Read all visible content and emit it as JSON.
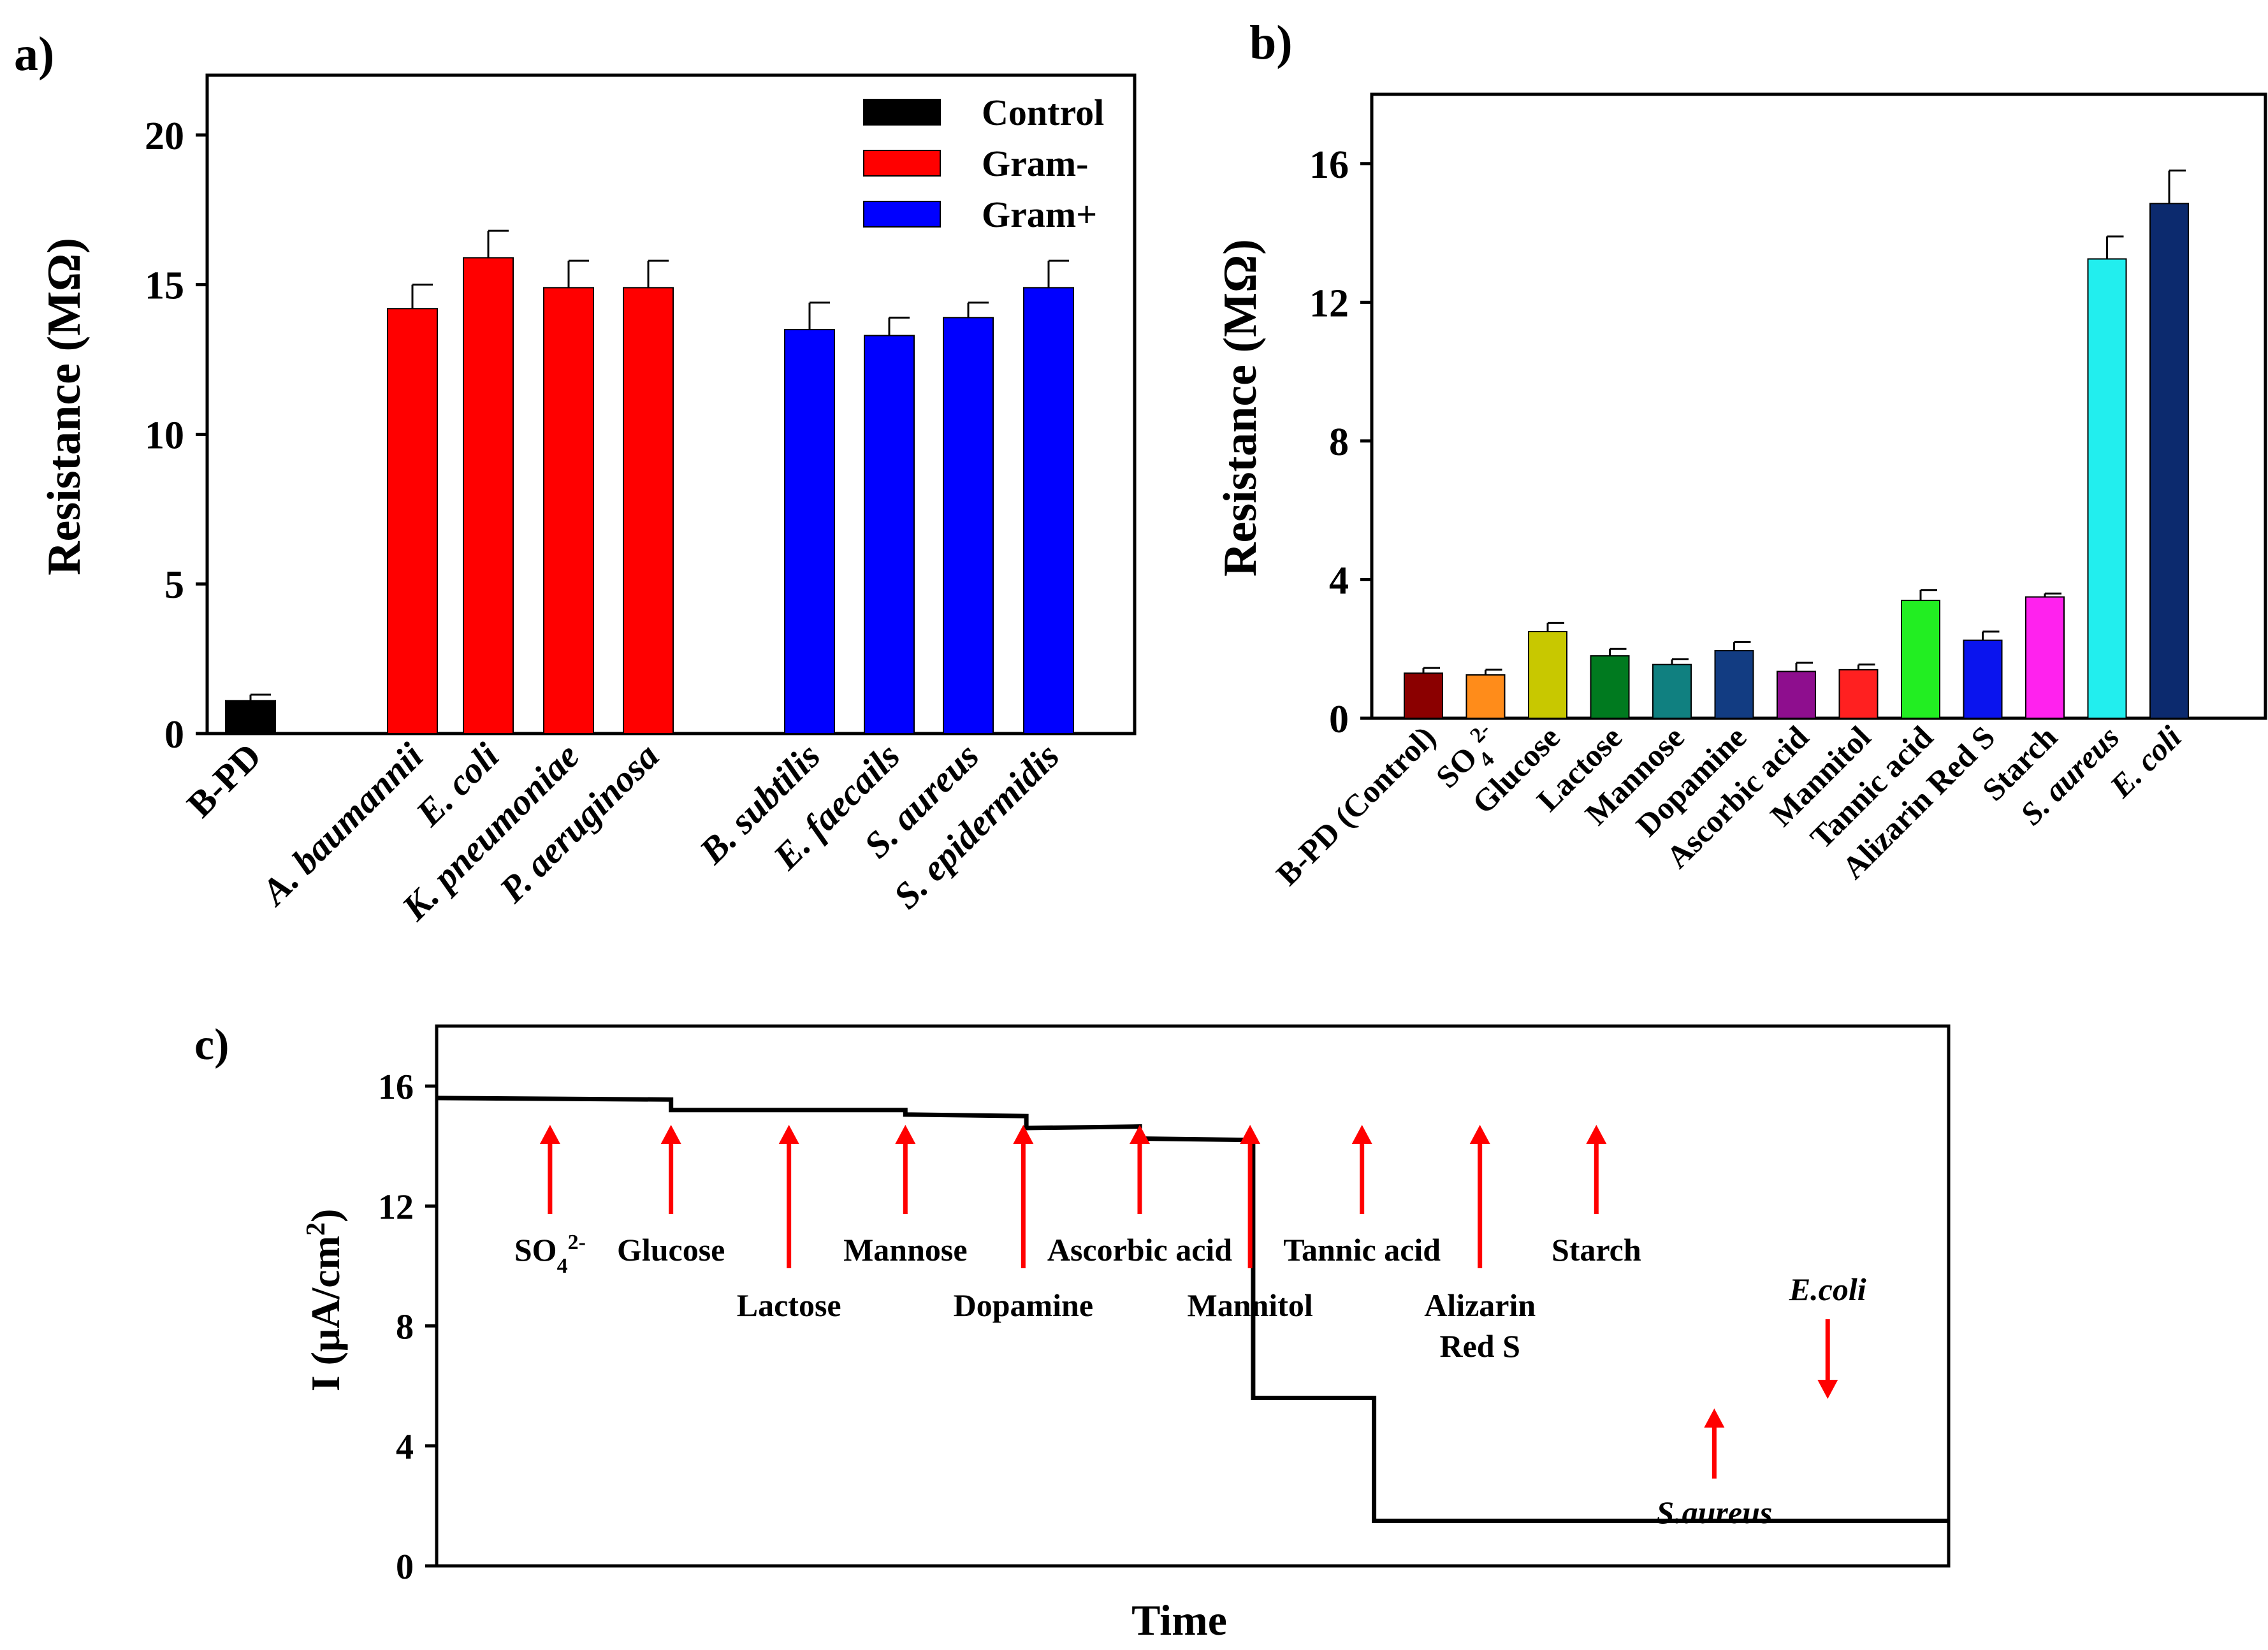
{
  "chart_data": [
    {
      "panel": "a)",
      "type": "bar",
      "ylabel": "Resistance (MΩ)",
      "ylim": [
        0,
        22
      ],
      "yticks": [
        "0",
        "5",
        "10",
        "15",
        "20"
      ],
      "grid": false,
      "legend": {
        "placement": "top-right",
        "entries": [
          {
            "label": "Control",
            "color": "#000000"
          },
          {
            "label": "Gram-",
            "color": "#ff0000"
          },
          {
            "label": "Gram+",
            "color": "#0000ff"
          }
        ]
      },
      "categories": [
        "B-PD",
        "A. baumannii",
        "E. coli",
        "K. pneumoniae",
        "P. aeruginosa",
        "B. subtilis",
        "E. faecails",
        "S. aureus",
        "S. epidermidis"
      ],
      "italic_categories": [
        false,
        true,
        true,
        true,
        true,
        true,
        true,
        true,
        true
      ],
      "groups": [
        "Control",
        "Gram-",
        "Gram-",
        "Gram-",
        "Gram-",
        "Gram+",
        "Gram+",
        "Gram+",
        "Gram+"
      ],
      "values": [
        1.1,
        14.2,
        15.9,
        14.9,
        14.9,
        13.5,
        13.3,
        13.9,
        14.9
      ],
      "errors": [
        0.2,
        0.8,
        0.9,
        0.9,
        0.9,
        0.9,
        0.6,
        0.5,
        0.9
      ]
    },
    {
      "panel": "b)",
      "type": "bar",
      "ylabel": "Resistance (MΩ)",
      "ylim": [
        0,
        18
      ],
      "yticks": [
        "0",
        "4",
        "8",
        "12",
        "16"
      ],
      "grid": false,
      "categories": [
        "B-PD (Control)",
        "SO4",
        "Glucose",
        "Lactose",
        "Mannose",
        "Dopamine",
        "Ascorbic acid",
        "Mannitol",
        "Tannic acid",
        "Alizarin Red S",
        "Starch",
        "S. aureus",
        "E. coli"
      ],
      "so4_superscript": "2-",
      "so4_subscript": "4",
      "italic_categories": [
        false,
        false,
        false,
        false,
        false,
        false,
        false,
        false,
        false,
        false,
        false,
        true,
        true
      ],
      "values": [
        1.3,
        1.25,
        2.5,
        1.8,
        1.55,
        1.95,
        1.35,
        1.4,
        3.4,
        2.25,
        3.5,
        13.25,
        14.85
      ],
      "errors": [
        0.15,
        0.15,
        0.25,
        0.2,
        0.15,
        0.25,
        0.25,
        0.15,
        0.3,
        0.25,
        0.1,
        0.65,
        0.95
      ],
      "colors": [
        "#8b0000",
        "#ff8c1a",
        "#c8c800",
        "#007a1f",
        "#108080",
        "#123c82",
        "#8e0e8e",
        "#ff2020",
        "#22ee22",
        "#0a14ee",
        "#ff22ee",
        "#22eeee",
        "#0c2a6e"
      ]
    },
    {
      "panel": "c)",
      "type": "line",
      "xlabel": "Time",
      "ylabel": "I (μA/cm",
      "ylabel_sup": "2",
      "ylabel_close": ")",
      "ylim": [
        0,
        18
      ],
      "yticks": [
        "0",
        "4",
        "8",
        "12",
        "16"
      ],
      "grid": false,
      "series": [
        {
          "name": "current",
          "color": "#000000",
          "x": [
            0,
            0.155,
            0.155,
            0.31,
            0.31,
            0.39,
            0.39,
            0.465,
            0.465,
            0.54,
            0.54,
            0.62,
            0.62,
            0.685,
            0.685,
            0.77,
            0.77,
            0.84,
            0.84,
            0.92,
            0.92,
            1.0
          ],
          "y": [
            15.6,
            15.55,
            15.2,
            15.2,
            15.05,
            15.0,
            14.6,
            14.65,
            14.25,
            14.2,
            5.6,
            5.6,
            1.5,
            1.5,
            1.5,
            1.5,
            1.5,
            1.5,
            1.5,
            1.5,
            1.5,
            1.5
          ]
        }
      ],
      "annotations": [
        {
          "label": "SO4",
          "sup": "2-",
          "sub": "4",
          "x": 0.075,
          "direction": "up",
          "italic": false
        },
        {
          "label": "Glucose",
          "x": 0.155,
          "direction": "up",
          "italic": false
        },
        {
          "label": "Lactose",
          "x": 0.233,
          "direction": "up",
          "italic": false
        },
        {
          "label": "Mannose",
          "x": 0.31,
          "direction": "up",
          "italic": false
        },
        {
          "label": "Dopamine",
          "x": 0.388,
          "direction": "up",
          "italic": false
        },
        {
          "label": "Ascorbic acid",
          "x": 0.465,
          "direction": "up",
          "italic": false
        },
        {
          "label": "Mannitol",
          "x": 0.538,
          "direction": "up",
          "italic": false
        },
        {
          "label": "Tannic acid",
          "x": 0.612,
          "direction": "up",
          "italic": false
        },
        {
          "label": "Alizarin Red S",
          "lines": [
            "Alizarin",
            "Red S"
          ],
          "x": 0.69,
          "direction": "up",
          "italic": false
        },
        {
          "label": "Starch",
          "x": 0.767,
          "direction": "up",
          "italic": false
        },
        {
          "label": "S.aureus",
          "x": 0.845,
          "direction": "up",
          "italic": true
        },
        {
          "label": "E.coli",
          "x": 0.92,
          "direction": "down",
          "italic": true
        }
      ],
      "arrow_color": "#ff0000"
    }
  ]
}
